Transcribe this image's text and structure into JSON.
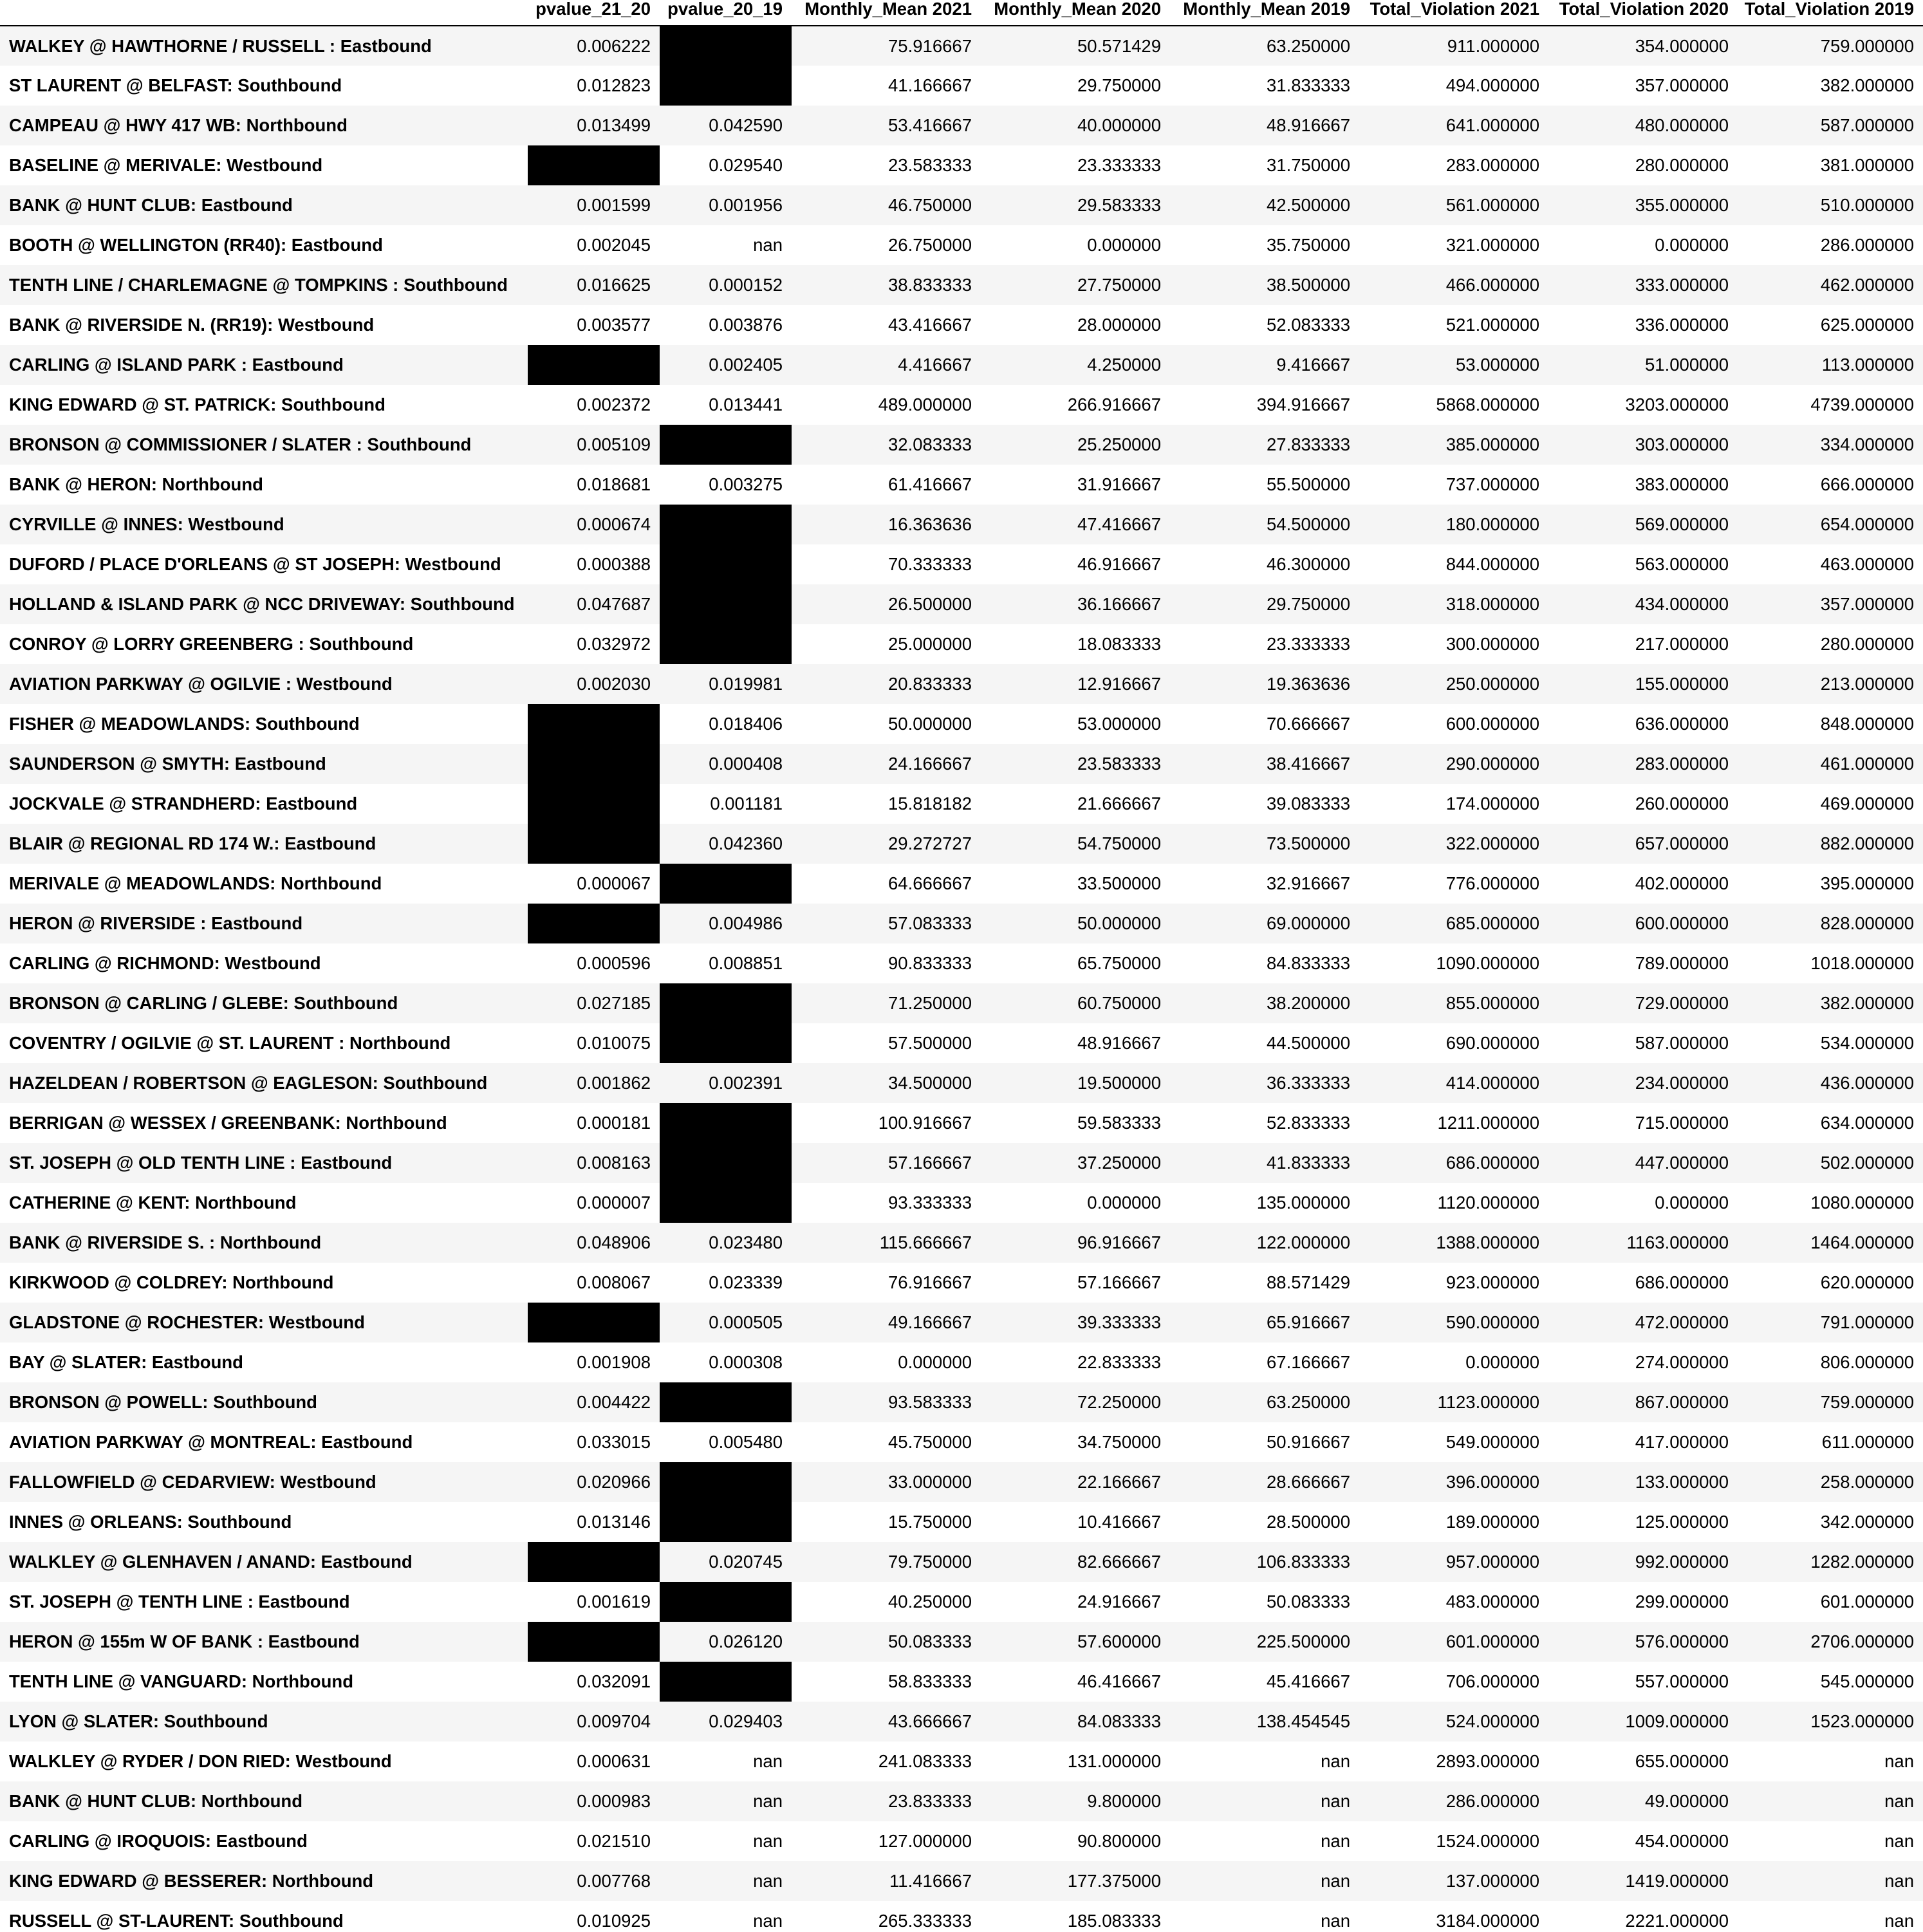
{
  "columns": [
    "",
    "pvalue_21_20",
    "pvalue_20_19",
    "Monthly_Mean 2021",
    "Monthly_Mean 2020",
    "Monthly_Mean 2019",
    "Total_Violation 2021",
    "Total_Violation 2020",
    "Total_Violation 2019"
  ],
  "masked_color": "#000000",
  "stripe_color": "#f5f5f5",
  "rows": [
    [
      "WALKEY @ HAWTHORNE / RUSSELL : Eastbound",
      "0.006222",
      null,
      "75.916667",
      "50.571429",
      "63.250000",
      "911.000000",
      "354.000000",
      "759.000000"
    ],
    [
      "ST LAURENT @ BELFAST: Southbound",
      "0.012823",
      null,
      "41.166667",
      "29.750000",
      "31.833333",
      "494.000000",
      "357.000000",
      "382.000000"
    ],
    [
      "CAMPEAU @ HWY 417 WB: Northbound",
      "0.013499",
      "0.042590",
      "53.416667",
      "40.000000",
      "48.916667",
      "641.000000",
      "480.000000",
      "587.000000"
    ],
    [
      "BASELINE @ MERIVALE: Westbound",
      null,
      "0.029540",
      "23.583333",
      "23.333333",
      "31.750000",
      "283.000000",
      "280.000000",
      "381.000000"
    ],
    [
      "BANK @ HUNT CLUB: Eastbound",
      "0.001599",
      "0.001956",
      "46.750000",
      "29.583333",
      "42.500000",
      "561.000000",
      "355.000000",
      "510.000000"
    ],
    [
      "BOOTH @ WELLINGTON (RR40): Eastbound",
      "0.002045",
      "nan",
      "26.750000",
      "0.000000",
      "35.750000",
      "321.000000",
      "0.000000",
      "286.000000"
    ],
    [
      "TENTH LINE / CHARLEMAGNE @ TOMPKINS : Southbound",
      "0.016625",
      "0.000152",
      "38.833333",
      "27.750000",
      "38.500000",
      "466.000000",
      "333.000000",
      "462.000000"
    ],
    [
      "BANK @ RIVERSIDE N. (RR19): Westbound",
      "0.003577",
      "0.003876",
      "43.416667",
      "28.000000",
      "52.083333",
      "521.000000",
      "336.000000",
      "625.000000"
    ],
    [
      "CARLING @ ISLAND PARK : Eastbound",
      null,
      "0.002405",
      "4.416667",
      "4.250000",
      "9.416667",
      "53.000000",
      "51.000000",
      "113.000000"
    ],
    [
      "KING EDWARD @ ST. PATRICK: Southbound",
      "0.002372",
      "0.013441",
      "489.000000",
      "266.916667",
      "394.916667",
      "5868.000000",
      "3203.000000",
      "4739.000000"
    ],
    [
      "BRONSON @ COMMISSIONER / SLATER : Southbound",
      "0.005109",
      null,
      "32.083333",
      "25.250000",
      "27.833333",
      "385.000000",
      "303.000000",
      "334.000000"
    ],
    [
      "BANK @ HERON: Northbound",
      "0.018681",
      "0.003275",
      "61.416667",
      "31.916667",
      "55.500000",
      "737.000000",
      "383.000000",
      "666.000000"
    ],
    [
      "CYRVILLE @ INNES: Westbound",
      "0.000674",
      null,
      "16.363636",
      "47.416667",
      "54.500000",
      "180.000000",
      "569.000000",
      "654.000000"
    ],
    [
      "DUFORD / PLACE D'ORLEANS @ ST JOSEPH: Westbound",
      "0.000388",
      null,
      "70.333333",
      "46.916667",
      "46.300000",
      "844.000000",
      "563.000000",
      "463.000000"
    ],
    [
      "HOLLAND & ISLAND PARK @ NCC DRIVEWAY: Southbound",
      "0.047687",
      null,
      "26.500000",
      "36.166667",
      "29.750000",
      "318.000000",
      "434.000000",
      "357.000000"
    ],
    [
      "CONROY @ LORRY GREENBERG : Southbound",
      "0.032972",
      null,
      "25.000000",
      "18.083333",
      "23.333333",
      "300.000000",
      "217.000000",
      "280.000000"
    ],
    [
      "AVIATION PARKWAY @ OGILVIE : Westbound",
      "0.002030",
      "0.019981",
      "20.833333",
      "12.916667",
      "19.363636",
      "250.000000",
      "155.000000",
      "213.000000"
    ],
    [
      "FISHER @ MEADOWLANDS: Southbound",
      null,
      "0.018406",
      "50.000000",
      "53.000000",
      "70.666667",
      "600.000000",
      "636.000000",
      "848.000000"
    ],
    [
      "SAUNDERSON @ SMYTH: Eastbound",
      null,
      "0.000408",
      "24.166667",
      "23.583333",
      "38.416667",
      "290.000000",
      "283.000000",
      "461.000000"
    ],
    [
      "JOCKVALE @ STRANDHERD: Eastbound",
      null,
      "0.001181",
      "15.818182",
      "21.666667",
      "39.083333",
      "174.000000",
      "260.000000",
      "469.000000"
    ],
    [
      "BLAIR @ REGIONAL RD 174 W.: Eastbound",
      null,
      "0.042360",
      "29.272727",
      "54.750000",
      "73.500000",
      "322.000000",
      "657.000000",
      "882.000000"
    ],
    [
      "MERIVALE @ MEADOWLANDS: Northbound",
      "0.000067",
      null,
      "64.666667",
      "33.500000",
      "32.916667",
      "776.000000",
      "402.000000",
      "395.000000"
    ],
    [
      "HERON @ RIVERSIDE : Eastbound",
      null,
      "0.004986",
      "57.083333",
      "50.000000",
      "69.000000",
      "685.000000",
      "600.000000",
      "828.000000"
    ],
    [
      "CARLING @ RICHMOND: Westbound",
      "0.000596",
      "0.008851",
      "90.833333",
      "65.750000",
      "84.833333",
      "1090.000000",
      "789.000000",
      "1018.000000"
    ],
    [
      "BRONSON @ CARLING / GLEBE: Southbound",
      "0.027185",
      null,
      "71.250000",
      "60.750000",
      "38.200000",
      "855.000000",
      "729.000000",
      "382.000000"
    ],
    [
      "COVENTRY / OGILVIE @ ST. LAURENT : Northbound",
      "0.010075",
      null,
      "57.500000",
      "48.916667",
      "44.500000",
      "690.000000",
      "587.000000",
      "534.000000"
    ],
    [
      "HAZELDEAN / ROBERTSON @ EAGLESON: Southbound",
      "0.001862",
      "0.002391",
      "34.500000",
      "19.500000",
      "36.333333",
      "414.000000",
      "234.000000",
      "436.000000"
    ],
    [
      "BERRIGAN @ WESSEX / GREENBANK: Northbound",
      "0.000181",
      null,
      "100.916667",
      "59.583333",
      "52.833333",
      "1211.000000",
      "715.000000",
      "634.000000"
    ],
    [
      "ST. JOSEPH @ OLD TENTH LINE : Eastbound",
      "0.008163",
      null,
      "57.166667",
      "37.250000",
      "41.833333",
      "686.000000",
      "447.000000",
      "502.000000"
    ],
    [
      "CATHERINE @ KENT: Northbound",
      "0.000007",
      null,
      "93.333333",
      "0.000000",
      "135.000000",
      "1120.000000",
      "0.000000",
      "1080.000000"
    ],
    [
      "BANK @ RIVERSIDE S. : Northbound",
      "0.048906",
      "0.023480",
      "115.666667",
      "96.916667",
      "122.000000",
      "1388.000000",
      "1163.000000",
      "1464.000000"
    ],
    [
      "KIRKWOOD @ COLDREY: Northbound",
      "0.008067",
      "0.023339",
      "76.916667",
      "57.166667",
      "88.571429",
      "923.000000",
      "686.000000",
      "620.000000"
    ],
    [
      "GLADSTONE @ ROCHESTER: Westbound",
      null,
      "0.000505",
      "49.166667",
      "39.333333",
      "65.916667",
      "590.000000",
      "472.000000",
      "791.000000"
    ],
    [
      "BAY @ SLATER: Eastbound",
      "0.001908",
      "0.000308",
      "0.000000",
      "22.833333",
      "67.166667",
      "0.000000",
      "274.000000",
      "806.000000"
    ],
    [
      "BRONSON @ POWELL: Southbound",
      "0.004422",
      null,
      "93.583333",
      "72.250000",
      "63.250000",
      "1123.000000",
      "867.000000",
      "759.000000"
    ],
    [
      "AVIATION PARKWAY @ MONTREAL: Eastbound",
      "0.033015",
      "0.005480",
      "45.750000",
      "34.750000",
      "50.916667",
      "549.000000",
      "417.000000",
      "611.000000"
    ],
    [
      "FALLOWFIELD @ CEDARVIEW: Westbound",
      "0.020966",
      null,
      "33.000000",
      "22.166667",
      "28.666667",
      "396.000000",
      "133.000000",
      "258.000000"
    ],
    [
      "INNES @ ORLEANS: Southbound",
      "0.013146",
      null,
      "15.750000",
      "10.416667",
      "28.500000",
      "189.000000",
      "125.000000",
      "342.000000"
    ],
    [
      "WALKLEY @ GLENHAVEN / ANAND: Eastbound",
      null,
      "0.020745",
      "79.750000",
      "82.666667",
      "106.833333",
      "957.000000",
      "992.000000",
      "1282.000000"
    ],
    [
      "ST. JOSEPH @ TENTH LINE : Eastbound",
      "0.001619",
      null,
      "40.250000",
      "24.916667",
      "50.083333",
      "483.000000",
      "299.000000",
      "601.000000"
    ],
    [
      "HERON @ 155m W OF BANK : Eastbound",
      null,
      "0.026120",
      "50.083333",
      "57.600000",
      "225.500000",
      "601.000000",
      "576.000000",
      "2706.000000"
    ],
    [
      "TENTH LINE @ VANGUARD: Northbound",
      "0.032091",
      null,
      "58.833333",
      "46.416667",
      "45.416667",
      "706.000000",
      "557.000000",
      "545.000000"
    ],
    [
      "LYON @ SLATER: Southbound",
      "0.009704",
      "0.029403",
      "43.666667",
      "84.083333",
      "138.454545",
      "524.000000",
      "1009.000000",
      "1523.000000"
    ],
    [
      "WALKLEY @ RYDER / DON RIED: Westbound",
      "0.000631",
      "nan",
      "241.083333",
      "131.000000",
      "nan",
      "2893.000000",
      "655.000000",
      "nan"
    ],
    [
      "BANK @ HUNT CLUB: Northbound",
      "0.000983",
      "nan",
      "23.833333",
      "9.800000",
      "nan",
      "286.000000",
      "49.000000",
      "nan"
    ],
    [
      "CARLING @ IROQUOIS: Eastbound",
      "0.021510",
      "nan",
      "127.000000",
      "90.800000",
      "nan",
      "1524.000000",
      "454.000000",
      "nan"
    ],
    [
      "KING EDWARD @ BESSERER: Northbound",
      "0.007768",
      "nan",
      "11.416667",
      "177.375000",
      "nan",
      "137.000000",
      "1419.000000",
      "nan"
    ],
    [
      "RUSSELL @ ST-LAURENT: Southbound",
      "0.010925",
      "nan",
      "265.333333",
      "185.083333",
      "nan",
      "3184.000000",
      "2221.000000",
      "nan"
    ]
  ]
}
